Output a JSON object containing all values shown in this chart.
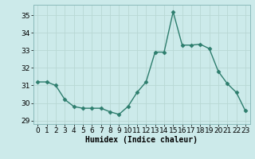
{
  "x": [
    0,
    1,
    2,
    3,
    4,
    5,
    6,
    7,
    8,
    9,
    10,
    11,
    12,
    13,
    14,
    15,
    16,
    17,
    18,
    19,
    20,
    21,
    22,
    23
  ],
  "y": [
    31.2,
    31.2,
    31.0,
    30.2,
    29.8,
    29.7,
    29.7,
    29.7,
    29.5,
    29.35,
    29.8,
    30.6,
    31.2,
    32.9,
    32.9,
    35.2,
    33.3,
    33.3,
    33.35,
    33.1,
    31.8,
    31.1,
    30.6,
    29.55
  ],
  "line_color": "#2d7d6d",
  "marker": "D",
  "markersize": 2.5,
  "linewidth": 1.0,
  "bg_color": "#cceaea",
  "grid_color_major": "#b8d8d4",
  "grid_color_minor": "#d4ecea",
  "xlabel": "Humidex (Indice chaleur)",
  "xlabel_fontsize": 7,
  "tick_fontsize": 6.5,
  "ylim": [
    28.8,
    35.6
  ],
  "xlim": [
    -0.5,
    23.5
  ],
  "yticks": [
    29,
    30,
    31,
    32,
    33,
    34,
    35
  ],
  "xticks": [
    0,
    1,
    2,
    3,
    4,
    5,
    6,
    7,
    8,
    9,
    10,
    11,
    12,
    13,
    14,
    15,
    16,
    17,
    18,
    19,
    20,
    21,
    22,
    23
  ],
  "spine_color": "#8ababa"
}
